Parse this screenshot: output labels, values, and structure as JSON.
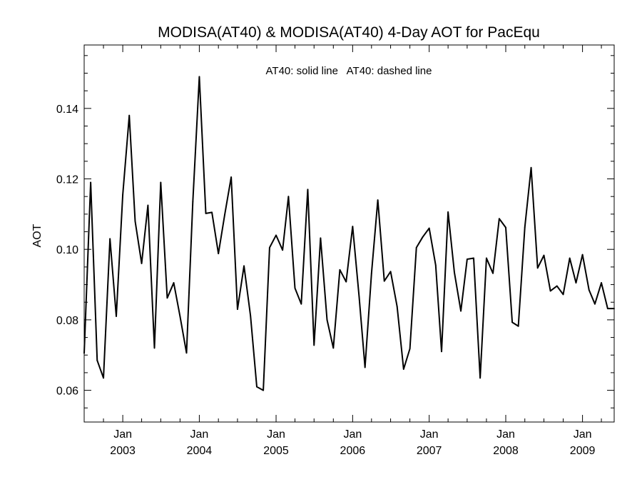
{
  "chart_data": {
    "type": "line",
    "title": "MODISA(AT40) & MODISA(AT40) 4-Day AOT for PacEqu",
    "xlabel": "",
    "ylabel": "AOT",
    "legend_text": "AT40: solid line   AT40: dashed line",
    "legend_position": "top-center",
    "grid": false,
    "xlim": [
      "2002-07-01",
      "2009-06-01"
    ],
    "ylim": [
      0.051,
      0.158
    ],
    "y_ticks": [
      0.06,
      0.08,
      0.1,
      0.12,
      0.14
    ],
    "y_tick_labels": [
      "0.06",
      "0.08",
      "0.10",
      "0.12",
      "0.14"
    ],
    "x_ticks": [
      {
        "date": "2003-01-01",
        "month": "Jan",
        "year": "2003"
      },
      {
        "date": "2004-01-01",
        "month": "Jan",
        "year": "2004"
      },
      {
        "date": "2005-01-01",
        "month": "Jan",
        "year": "2005"
      },
      {
        "date": "2006-01-01",
        "month": "Jan",
        "year": "2006"
      },
      {
        "date": "2007-01-01",
        "month": "Jan",
        "year": "2007"
      },
      {
        "date": "2008-01-01",
        "month": "Jan",
        "year": "2008"
      },
      {
        "date": "2009-01-01",
        "month": "Jan",
        "year": "2009"
      }
    ],
    "series": [
      {
        "style": "solid",
        "color": "#000000",
        "x": [
          "2002-07-01",
          "2002-08-01",
          "2002-09-01",
          "2002-10-01",
          "2002-11-01",
          "2002-12-01",
          "2003-01-01",
          "2003-02-01",
          "2003-03-01",
          "2003-04-01",
          "2003-05-01",
          "2003-06-01",
          "2003-07-01",
          "2003-08-01",
          "2003-09-01",
          "2003-10-01",
          "2003-11-01",
          "2003-12-01",
          "2004-01-01",
          "2004-02-01",
          "2004-03-01",
          "2004-04-01",
          "2004-05-01",
          "2004-06-01",
          "2004-07-01",
          "2004-08-01",
          "2004-09-01",
          "2004-10-01",
          "2004-11-01",
          "2004-12-01",
          "2005-01-01",
          "2005-02-01",
          "2005-03-01",
          "2005-04-01",
          "2005-05-01",
          "2005-06-01",
          "2005-07-01",
          "2005-08-01",
          "2005-09-01",
          "2005-10-01",
          "2005-11-01",
          "2005-12-01",
          "2006-01-01",
          "2006-02-01",
          "2006-03-01",
          "2006-04-01",
          "2006-05-01",
          "2006-06-01",
          "2006-07-01",
          "2006-08-01",
          "2006-09-01",
          "2006-10-01",
          "2006-11-01",
          "2006-12-01",
          "2007-01-01",
          "2007-02-01",
          "2007-03-01",
          "2007-04-01",
          "2007-05-01",
          "2007-06-01",
          "2007-07-01",
          "2007-08-01",
          "2007-09-01",
          "2007-10-01",
          "2007-11-01",
          "2007-12-01",
          "2008-01-01",
          "2008-02-01",
          "2008-03-01",
          "2008-04-01",
          "2008-05-01",
          "2008-06-01",
          "2008-07-01",
          "2008-08-01",
          "2008-09-01",
          "2008-10-01",
          "2008-11-01",
          "2008-12-01",
          "2009-01-01",
          "2009-02-01",
          "2009-03-01",
          "2009-04-01",
          "2009-05-01",
          "2009-06-01"
        ],
        "values": [
          0.0705,
          0.119,
          0.0685,
          0.0635,
          0.103,
          0.081,
          0.1155,
          0.138,
          0.108,
          0.096,
          0.1125,
          0.072,
          0.119,
          0.0862,
          0.0905,
          0.081,
          0.0706,
          0.1135,
          0.149,
          0.1102,
          0.1105,
          0.0988,
          0.1098,
          0.1205,
          0.083,
          0.0953,
          0.0812,
          0.061,
          0.06,
          0.1005,
          0.104,
          0.0998,
          0.115,
          0.089,
          0.0845,
          0.117,
          0.0728,
          0.1032,
          0.08,
          0.072,
          0.0942,
          0.0908,
          0.1065,
          0.0865,
          0.0665,
          0.0932,
          0.114,
          0.091,
          0.0937,
          0.0838,
          0.066,
          0.0718,
          0.1005,
          0.1035,
          0.106,
          0.0955,
          0.071,
          0.1106,
          0.0935,
          0.0825,
          0.0972,
          0.0975,
          0.0635,
          0.0975,
          0.0932,
          0.1087,
          0.1062,
          0.0793,
          0.0782,
          0.1063,
          0.1232,
          0.0947,
          0.0983,
          0.0882,
          0.0896,
          0.0872,
          0.0975,
          0.0905,
          0.0985,
          0.0885,
          0.0845,
          0.0905,
          0.0832,
          0.0832
        ]
      }
    ]
  }
}
